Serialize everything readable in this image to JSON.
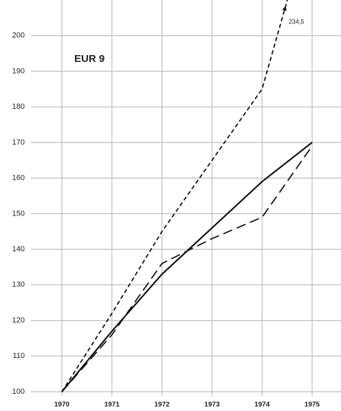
{
  "chart_data": {
    "type": "line",
    "title": "EUR 9",
    "categories": [
      "1970",
      "1971",
      "1972",
      "1973",
      "1974",
      "1975"
    ],
    "series": [
      {
        "color": "#111111",
        "dash": "solid",
        "values": [
          100,
          117,
          133,
          146,
          159,
          170
        ]
      },
      {
        "color": "#111111",
        "dash": "long",
        "values": [
          100,
          116,
          136,
          143,
          149,
          169
        ]
      },
      {
        "color": "#111111",
        "dash": "short",
        "values": [
          100,
          122,
          145,
          165,
          185,
          234.5
        ],
        "value_labels": [
          null,
          null,
          null,
          null,
          null,
          "234,5"
        ]
      }
    ],
    "ylim": [
      100,
      210
    ],
    "yticks": [
      100,
      110,
      120,
      130,
      140,
      150,
      160,
      170,
      180,
      190,
      200
    ],
    "grid": true
  }
}
